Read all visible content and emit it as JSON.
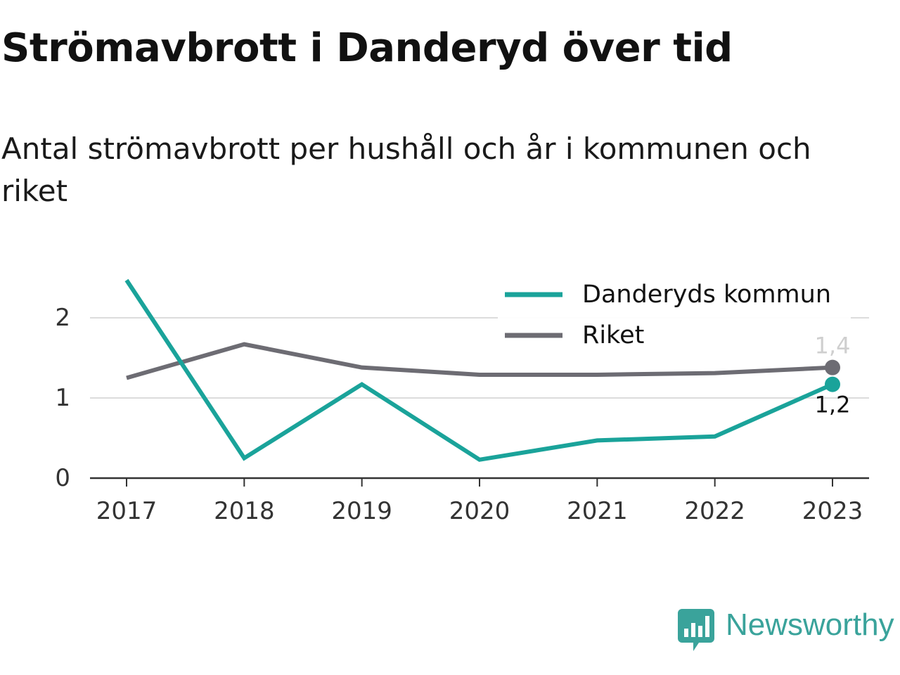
{
  "chart_data": {
    "type": "line",
    "title": "Strömavbrott i Danderyd över tid",
    "subtitle": "Antal strömavbrott per hushåll och år i kommunen och riket",
    "x": [
      "2017",
      "2018",
      "2019",
      "2020",
      "2021",
      "2022",
      "2023"
    ],
    "series": [
      {
        "name": "Danderyds kommun",
        "color": "#1aa39a",
        "values": [
          2.47,
          0.25,
          1.17,
          0.23,
          0.47,
          0.52,
          1.17
        ],
        "end_label": "1,2"
      },
      {
        "name": "Riket",
        "color": "#6d6c73",
        "values": [
          1.25,
          1.67,
          1.38,
          1.29,
          1.29,
          1.31,
          1.38
        ],
        "end_label": "1,4"
      }
    ],
    "yticks": [
      0,
      1,
      2
    ],
    "ylim": [
      0,
      2.5
    ],
    "grid": true,
    "legend": "top-right",
    "xlabel": "",
    "ylabel": ""
  },
  "brand": {
    "name": "Newsworthy",
    "icon": "newsworthy-logo-icon",
    "color": "#3aa39b"
  }
}
